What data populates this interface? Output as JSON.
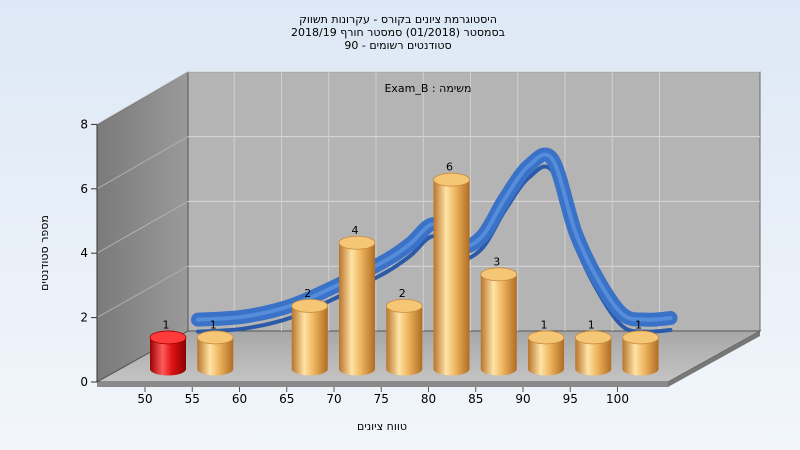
{
  "chart_data": {
    "type": "bar",
    "title_lines": [
      "היסטוגרמת ציונים בקורס - עקרונות תשווק",
      "בסמסטר  (01/2018)  סמסטר חורף 2018/19",
      "סטודנטים רשומים - 90"
    ],
    "annotation": "משימה : Exam_B",
    "xlabel": "טווח ציונים",
    "ylabel": "מספר סטודנטים",
    "x_ticks": [
      "50",
      "55",
      "60",
      "65",
      "70",
      "75",
      "80",
      "85",
      "90",
      "95",
      "100"
    ],
    "y_ticks": [
      0,
      2,
      4,
      6,
      8
    ],
    "ylim": [
      0,
      8
    ],
    "grid": true,
    "series": [
      {
        "type": "bar",
        "bins": [
          50,
          55,
          65,
          70,
          75,
          80,
          85,
          90,
          95,
          100
        ],
        "values": [
          1,
          1,
          2,
          4,
          2,
          6,
          3,
          1,
          1,
          1
        ],
        "highlight_bin": 50,
        "color": "#e8a64c",
        "highlight_color": "#dd1111"
      },
      {
        "type": "line",
        "x": [
          50,
          55,
          60,
          65,
          70,
          72.5,
          75,
          77.5,
          80,
          82.5,
          85,
          87.5,
          90,
          92.5,
          95,
          97.5,
          100
        ],
        "values": [
          0.35,
          0.45,
          0.8,
          1.45,
          2.2,
          2.7,
          3.3,
          2.6,
          2.9,
          4.1,
          5.1,
          5.3,
          3.0,
          1.5,
          0.5,
          0.35,
          0.4
        ],
        "color": "#3a72c8"
      }
    ]
  }
}
